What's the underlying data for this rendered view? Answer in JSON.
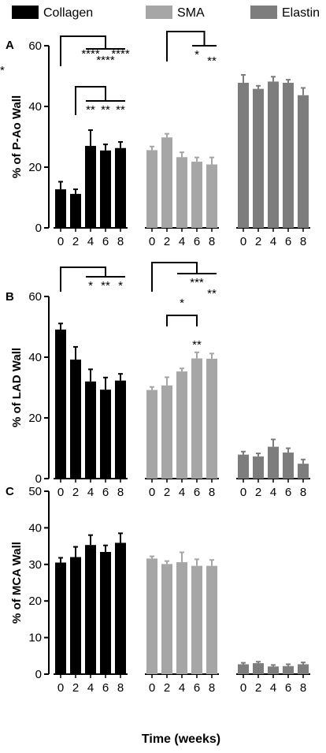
{
  "legend": [
    {
      "name": "Collagen",
      "color": "#000000"
    },
    {
      "name": "SMA",
      "color": "#a6a6a6"
    },
    {
      "name": "Elastin",
      "color": "#7d7d7d"
    }
  ],
  "xlabel": "Time (weeks)",
  "chart_data": [
    {
      "type": "bar",
      "panel_label": "A",
      "ylabel": "% of P-Ao Wall",
      "ylim": [
        0,
        60
      ],
      "yticks": [
        0,
        20,
        40,
        60
      ],
      "categories": [
        "0",
        "2",
        "4",
        "6",
        "8"
      ],
      "series": [
        {
          "name": "Collagen",
          "values": [
            12.7,
            11.2,
            27,
            25.5,
            26.3
          ],
          "errors": [
            2.5,
            1.5,
            5.2,
            2.0,
            2.0
          ]
        },
        {
          "name": "SMA",
          "values": [
            25.6,
            29.8,
            23.3,
            21.8,
            20.9
          ],
          "errors": [
            1.2,
            1.2,
            1.6,
            1.4,
            2.3
          ]
        },
        {
          "name": "Elastin",
          "values": [
            47.8,
            45.8,
            48.2,
            47.8,
            43.7
          ],
          "errors": [
            2.6,
            1.0,
            1.6,
            1.0,
            2.4
          ]
        }
      ],
      "annotations": [
        {
          "group": "Collagen",
          "from": "0",
          "to": [
            "4",
            "6",
            "8"
          ],
          "marks": [
            "****",
            "****",
            "****"
          ]
        },
        {
          "group": "Collagen",
          "from": "2",
          "to": [
            "4",
            "6",
            "8"
          ],
          "marks": [
            "**",
            "**",
            "**"
          ]
        },
        {
          "group": "SMA",
          "from": "2",
          "to": [
            "6",
            "8"
          ],
          "marks": [
            "*",
            "**",
            "**"
          ]
        }
      ]
    },
    {
      "type": "bar",
      "panel_label": "B",
      "ylabel": "% of LAD Wall",
      "ylim": [
        0,
        60
      ],
      "yticks": [
        0,
        20,
        40,
        60
      ],
      "categories": [
        "0",
        "2",
        "4",
        "6",
        "8"
      ],
      "series": [
        {
          "name": "Collagen",
          "values": [
            49.1,
            39.2,
            32.0,
            29.3,
            32.3
          ],
          "errors": [
            2.0,
            4.2,
            4.0,
            4.0,
            2.2
          ]
        },
        {
          "name": "SMA",
          "values": [
            29.2,
            30.7,
            35.3,
            39.6,
            39.5
          ],
          "errors": [
            1.0,
            2.7,
            1.0,
            2.0,
            1.7
          ]
        },
        {
          "name": "Elastin",
          "values": [
            7.9,
            7.3,
            10.5,
            8.6,
            4.9
          ],
          "errors": [
            1.0,
            1.0,
            2.4,
            1.4,
            1.4
          ]
        }
      ],
      "annotations": [
        {
          "group": "Collagen",
          "from": "0",
          "to": [
            "4",
            "6",
            "8"
          ],
          "marks": [
            "*",
            "**",
            "*"
          ]
        },
        {
          "group": "SMA",
          "from": "0",
          "to": [
            "4",
            "6",
            "8"
          ],
          "marks": [
            "*",
            "***",
            "**"
          ]
        },
        {
          "group": "SMA",
          "from": "2",
          "to": [
            "6"
          ],
          "marks": [
            "**"
          ]
        }
      ]
    },
    {
      "type": "bar",
      "panel_label": "C",
      "ylabel": "% of MCA Wall",
      "ylim": [
        0,
        50
      ],
      "yticks": [
        0,
        10,
        20,
        30,
        40,
        50
      ],
      "categories": [
        "0",
        "2",
        "4",
        "6",
        "8"
      ],
      "series": [
        {
          "name": "Collagen",
          "values": [
            30.5,
            32.0,
            35.3,
            33.4,
            35.9
          ],
          "errors": [
            1.3,
            2.8,
            2.7,
            1.8,
            2.6
          ]
        },
        {
          "name": "SMA",
          "values": [
            31.6,
            30.1,
            30.6,
            29.6,
            29.6
          ],
          "errors": [
            0.6,
            0.8,
            2.7,
            1.8,
            1.6
          ]
        },
        {
          "name": "Elastin",
          "values": [
            2.7,
            3.0,
            2.1,
            2.2,
            2.7
          ],
          "errors": [
            0.4,
            0.4,
            0.4,
            0.5,
            0.5
          ]
        }
      ],
      "annotations": []
    }
  ]
}
